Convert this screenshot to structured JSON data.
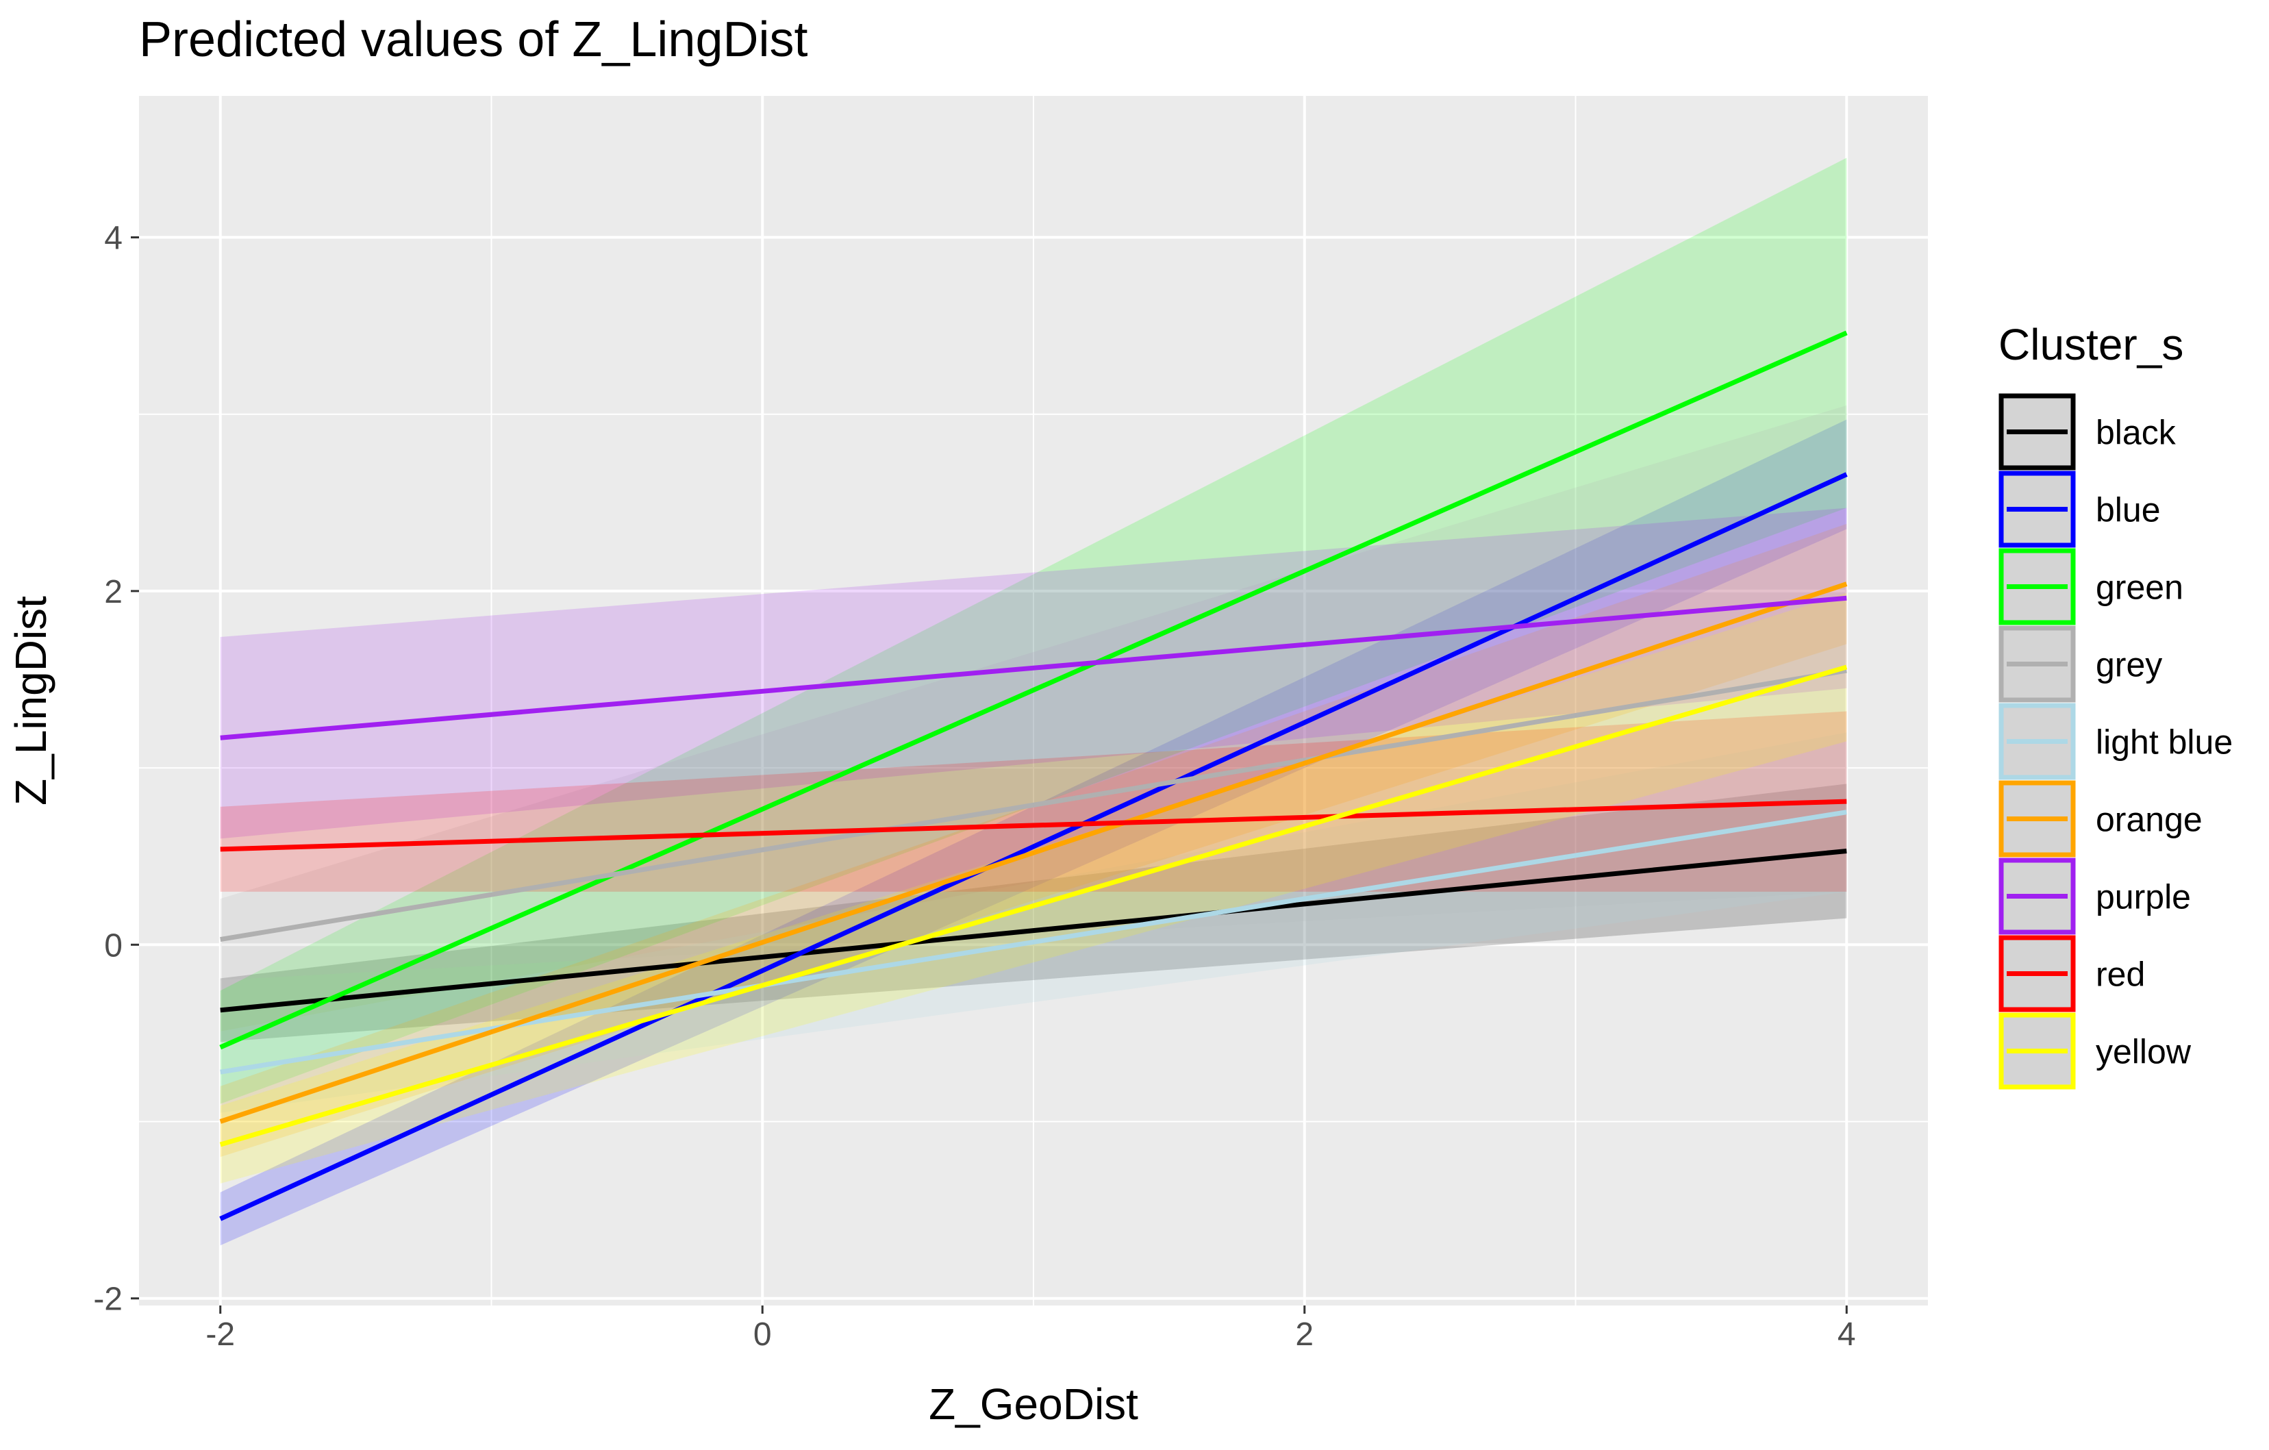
{
  "chart_data": {
    "type": "line",
    "title": "Predicted values of Z_LingDist",
    "xlabel": "Z_GeoDist",
    "ylabel": "Z_LingDist",
    "xlim": [
      -2.3,
      4.3
    ],
    "ylim": [
      -2.04,
      4.8
    ],
    "x_ticks": [
      -2,
      0,
      2,
      4
    ],
    "y_ticks": [
      -2,
      0,
      2,
      4
    ],
    "x_tick_labels": [
      "-2",
      "0",
      "2",
      "4"
    ],
    "y_tick_labels": [
      "-2",
      "0",
      "2",
      "4"
    ],
    "grid": true,
    "legend_title": "Cluster_s",
    "legend_position": "right",
    "series": [
      {
        "name": "black",
        "color": "#000000",
        "x": [
          -2,
          4
        ],
        "y": [
          -0.37,
          0.53
        ],
        "lower": [
          -0.55,
          0.15
        ],
        "upper": [
          -0.19,
          0.91
        ]
      },
      {
        "name": "blue",
        "color": "#0000ff",
        "x": [
          -2,
          4
        ],
        "y": [
          -1.55,
          2.66
        ],
        "lower": [
          -1.7,
          2.35
        ],
        "upper": [
          -1.4,
          2.97
        ]
      },
      {
        "name": "green",
        "color": "#00ff00",
        "x": [
          -2,
          4
        ],
        "y": [
          -0.58,
          3.46
        ],
        "lower": [
          -0.9,
          2.47
        ],
        "upper": [
          -0.26,
          4.45
        ]
      },
      {
        "name": "grey",
        "color": "#b0b0b0",
        "x": [
          -2,
          4
        ],
        "y": [
          0.03,
          1.55
        ],
        "lower": [
          -0.2,
          0.3
        ],
        "upper": [
          0.26,
          3.05
        ]
      },
      {
        "name": "light blue",
        "color": "#add8e6",
        "x": [
          -2,
          4
        ],
        "y": [
          -0.72,
          0.75
        ],
        "lower": [
          -0.95,
          0.3
        ],
        "upper": [
          -0.49,
          1.2
        ]
      },
      {
        "name": "orange",
        "color": "#ffa500",
        "x": [
          -2,
          4
        ],
        "y": [
          -1.0,
          2.04
        ],
        "lower": [
          -1.2,
          1.7
        ],
        "upper": [
          -0.8,
          2.38
        ]
      },
      {
        "name": "purple",
        "color": "#a020f0",
        "x": [
          -2,
          4
        ],
        "y": [
          1.17,
          1.96
        ],
        "lower": [
          0.6,
          1.45
        ],
        "upper": [
          1.74,
          2.47
        ]
      },
      {
        "name": "red",
        "color": "#ff0000",
        "x": [
          -2,
          4
        ],
        "y": [
          0.54,
          0.81
        ],
        "lower": [
          0.3,
          0.3
        ],
        "upper": [
          0.78,
          1.32
        ]
      },
      {
        "name": "yellow",
        "color": "#ffff00",
        "x": [
          -2,
          4
        ],
        "y": [
          -1.13,
          1.57
        ],
        "lower": [
          -1.35,
          1.15
        ],
        "upper": [
          -0.91,
          1.99
        ]
      }
    ]
  }
}
